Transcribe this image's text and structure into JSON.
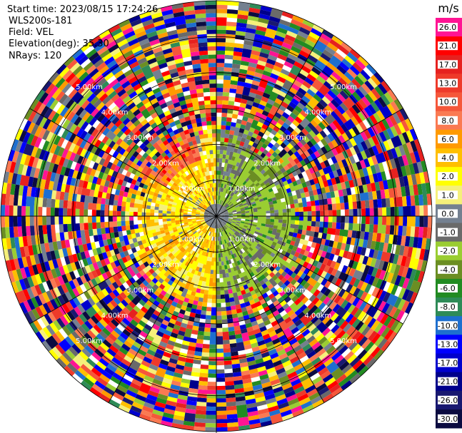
{
  "header": {
    "start_time": "Start time: 2023/08/15 17:24:26",
    "instrument": "WLS200s-181",
    "field": "Field: VEL",
    "elevation": "Elevation(deg): 35.30",
    "nrays": "NRays: 120"
  },
  "chart_data": {
    "type": "heatmap",
    "projection": "polar PPI",
    "field": "VEL",
    "n_rays": 120,
    "elevation_deg": 35.3,
    "range_ring_labels": [
      "1.00km",
      "2.00km",
      "3.00km",
      "4.00km",
      "5.00km"
    ],
    "colorbar": {
      "unit": "m/s",
      "tick_labels": [
        "26.0",
        "21.0",
        "17.0",
        "13.0",
        "10.0",
        "8.0",
        "6.0",
        "4.0",
        "2.0",
        "1.0",
        "0.0",
        "-1.0",
        "-2.0",
        "-4.0",
        "-6.0",
        "-8.0",
        "-10.0",
        "-13.0",
        "-17.0",
        "-21.0",
        "-26.0",
        "-30.0"
      ],
      "colors": [
        "#ff1493",
        "#ff0000",
        "#e6211f",
        "#ee3a2a",
        "#f5573a",
        "#fa7a52",
        "#ff9a00",
        "#ffbf00",
        "#ffff00",
        "#f5f07a",
        "#748090",
        "#6a6a6a",
        "#9acd32",
        "#6b8e23",
        "#228b22",
        "#2e8b57",
        "#1e6fcf",
        "#0000ff",
        "#0000cd",
        "#00008b",
        "#191970",
        "#0b0b40"
      ]
    },
    "near_field": {
      "west_sector": "positive 1.0 to 8.0 m/s (yellow-orange)",
      "east_sector": "negative -1.0 to -6.0 m/s (green)"
    },
    "far_field": "noise (random colours across full range)",
    "grid": true
  }
}
